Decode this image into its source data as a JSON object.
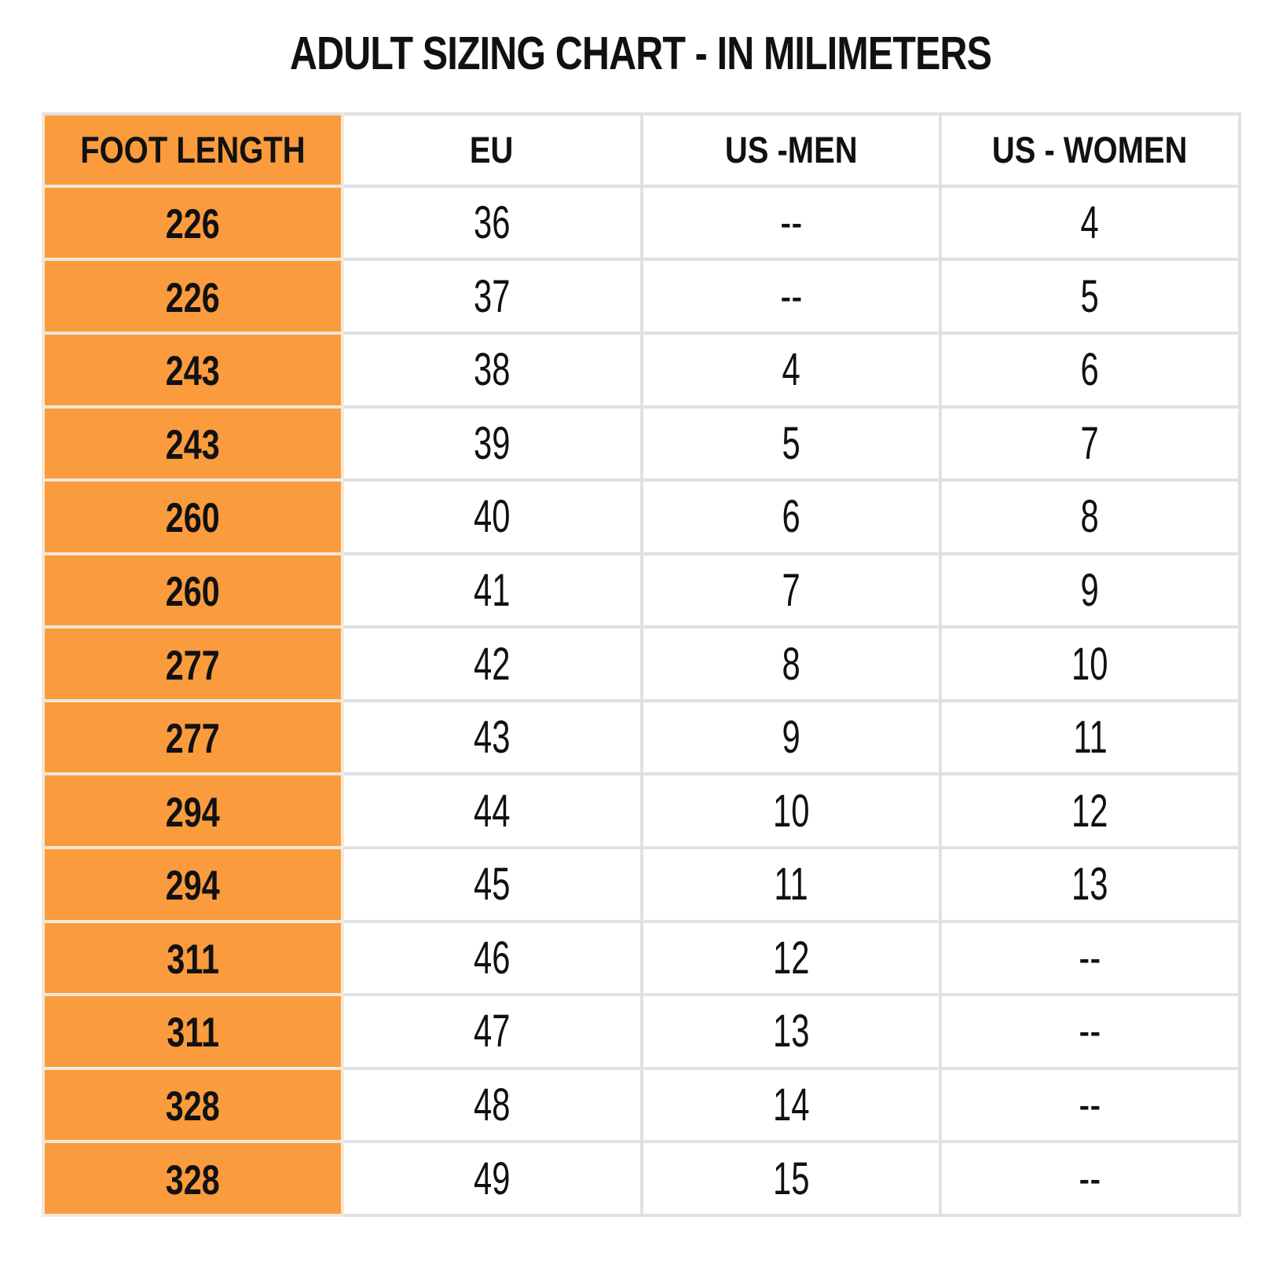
{
  "colors": {
    "header_orange": "#FA9B3E",
    "grid_line": "#E1E1E1",
    "orange_divider": "#F5E8D5",
    "text": "#111111"
  },
  "chart_data": {
    "type": "table",
    "title": "ADULT SIZING CHART - IN MILIMETERS",
    "columns": [
      "FOOT LENGTH",
      "EU",
      "US -MEN",
      "US - WOMEN"
    ],
    "rows": [
      [
        "226",
        "36",
        "--",
        "4"
      ],
      [
        "226",
        "37",
        "--",
        "5"
      ],
      [
        "243",
        "38",
        "4",
        "6"
      ],
      [
        "243",
        "39",
        "5",
        "7"
      ],
      [
        "260",
        "40",
        "6",
        "8"
      ],
      [
        "260",
        "41",
        "7",
        "9"
      ],
      [
        "277",
        "42",
        "8",
        "10"
      ],
      [
        "277",
        "43",
        "9",
        "11"
      ],
      [
        "294",
        "44",
        "10",
        "12"
      ],
      [
        "294",
        "45",
        "11",
        "13"
      ],
      [
        "311",
        "46",
        "12",
        "--"
      ],
      [
        "311",
        "47",
        "13",
        "--"
      ],
      [
        "328",
        "48",
        "14",
        "--"
      ],
      [
        "328",
        "49",
        "15",
        "--"
      ]
    ]
  }
}
